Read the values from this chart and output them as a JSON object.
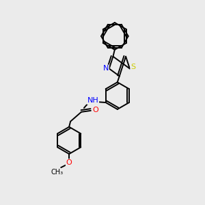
{
  "background_color": "#ebebeb",
  "bond_color": "#000000",
  "atom_colors": {
    "N": "#0000ff",
    "O": "#ff0000",
    "S": "#cccc00",
    "H": "#808080"
  },
  "lw": 1.4,
  "ring_r": 20
}
